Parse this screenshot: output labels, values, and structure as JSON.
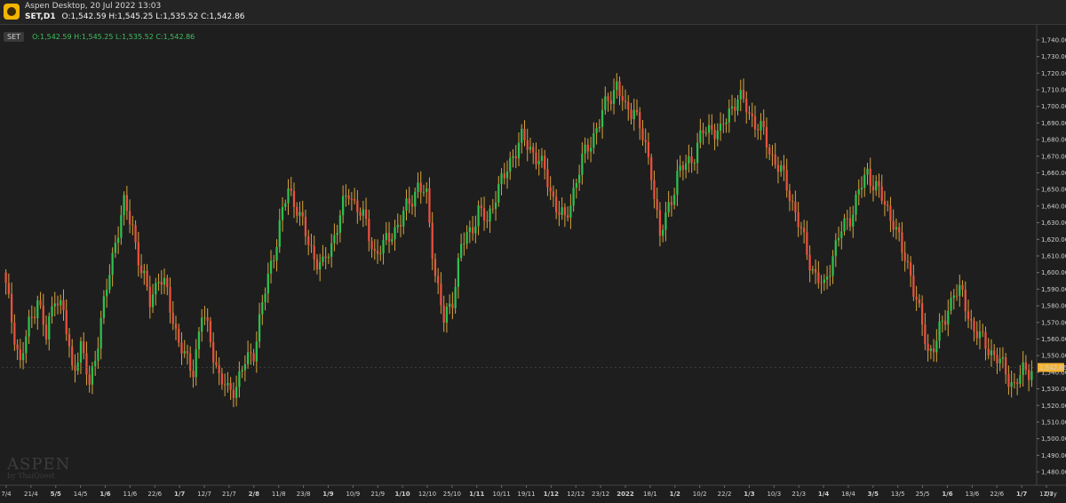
{
  "window": {
    "title": "Aspen Desktop, 20 Jul 2022 13:03",
    "symbol_timeframe": "SET,D1",
    "ohlc_text": "O:1,542.59 H:1,545.25 L:1,535.52 C:1,542.86"
  },
  "legend": {
    "symbol": "SET",
    "ohlc_text": "O:1,542.59 H:1,545.25 L:1,535.52 C:1,542.86"
  },
  "watermark": {
    "main": "ASPEN",
    "sub": "by ThaiQuest"
  },
  "colors": {
    "background": "#1e1e1e",
    "up": "#2fbf4f",
    "down": "#e9513f",
    "wick": "#d8a43a",
    "price_tag": "#f5b335",
    "grid": "#2a2a2a"
  },
  "chart_data": {
    "type": "candlestick",
    "symbol": "SET",
    "timeframe": "D1",
    "ylim": [
      1472,
      1748
    ],
    "y_ticks": [
      1480,
      1490,
      1500,
      1510,
      1520,
      1530,
      1540,
      1550,
      1560,
      1570,
      1580,
      1590,
      1600,
      1610,
      1620,
      1630,
      1640,
      1650,
      1660,
      1670,
      1680,
      1690,
      1700,
      1710,
      1720,
      1730,
      1740
    ],
    "y_tick_labels": [
      "1,480.00",
      "1,490.00",
      "1,500.00",
      "1,510.00",
      "1,520.00",
      "1,530.00",
      "1,540.00",
      "1,550.00",
      "1,560.00",
      "1,570.00",
      "1,580.00",
      "1,590.00",
      "1,600.00",
      "1,610.00",
      "1,620.00",
      "1,630.00",
      "1,640.00",
      "1,650.00",
      "1,660.00",
      "1,670.00",
      "1,680.00",
      "1,690.00",
      "1,700.00",
      "1,710.00",
      "1,720.00",
      "1,730.00",
      "1,740.00"
    ],
    "x_labels": [
      "7/4",
      "21/4",
      "5/5",
      "14/5",
      "1/6",
      "11/6",
      "22/6",
      "1/7",
      "12/7",
      "21/7",
      "2/8",
      "11/8",
      "23/8",
      "1/9",
      "10/9",
      "21/9",
      "1/10",
      "12/10",
      "25/10",
      "1/11",
      "10/11",
      "19/11",
      "1/12",
      "12/12",
      "23/12",
      "2022",
      "18/1",
      "1/2",
      "10/2",
      "22/2",
      "1/3",
      "10/3",
      "21/3",
      "1/4",
      "18/4",
      "3/5",
      "13/5",
      "25/5",
      "1/6",
      "13/6",
      "22/6",
      "1/7",
      "12/7"
    ],
    "x_label_bold": [
      "5/5",
      "1/6",
      "1/7",
      "2/8",
      "1/9",
      "1/10",
      "1/11",
      "1/12",
      "2022",
      "1/2",
      "1/3",
      "1/4",
      "3/5",
      "1/6",
      "1/7"
    ],
    "x_axis_unit": "Day",
    "close_points": [
      1600,
      1572,
      1545,
      1568,
      1585,
      1560,
      1588,
      1575,
      1542,
      1555,
      1532,
      1560,
      1590,
      1620,
      1640,
      1628,
      1600,
      1583,
      1598,
      1587,
      1565,
      1548,
      1542,
      1575,
      1560,
      1537,
      1528,
      1533,
      1545,
      1553,
      1580,
      1605,
      1628,
      1650,
      1640,
      1622,
      1610,
      1603,
      1617,
      1635,
      1648,
      1640,
      1628,
      1612,
      1615,
      1625,
      1630,
      1643,
      1652,
      1645,
      1600,
      1570,
      1585,
      1615,
      1625,
      1637,
      1630,
      1648,
      1657,
      1672,
      1680,
      1675,
      1668,
      1655,
      1640,
      1630,
      1650,
      1667,
      1680,
      1690,
      1705,
      1713,
      1697,
      1700,
      1680,
      1662,
      1620,
      1640,
      1658,
      1665,
      1672,
      1684,
      1688,
      1683,
      1698,
      1705,
      1700,
      1690,
      1683,
      1670,
      1660,
      1648,
      1630,
      1612,
      1598,
      1590,
      1612,
      1625,
      1634,
      1648,
      1660,
      1652,
      1640,
      1632,
      1612,
      1600,
      1575,
      1552,
      1560,
      1572,
      1590,
      1585,
      1570,
      1560,
      1555,
      1548,
      1540,
      1532,
      1540,
      1542.86
    ],
    "last_close": 1542.86,
    "last_close_label": "1,542.86"
  }
}
